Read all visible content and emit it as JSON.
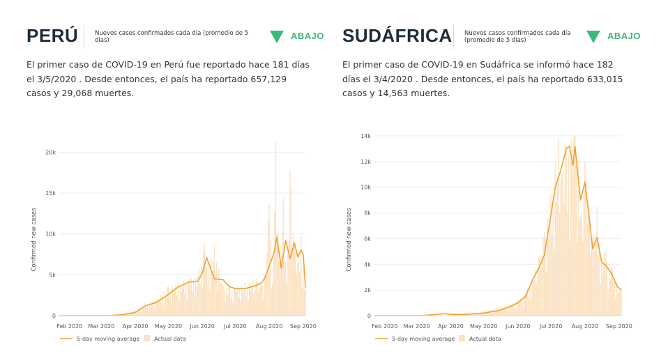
{
  "colors": {
    "avg_line": "#f0a22e",
    "actual_bars": "#fbe2c2",
    "trend": "#3cb878",
    "grid": "#ececec"
  },
  "trend_icon": "down-triangle-icon",
  "panels": [
    {
      "country": "PERÚ",
      "metric": "Nuevos casos confirmados cada día (promedio de 5 días)",
      "trend": "ABAJO",
      "description": "El primer caso de COVID-19 en Perú fue reportado hace 181 días el 3/5/2020 . Desde entonces, el país ha reportado 657,129 casos y 29,068 muertes."
    },
    {
      "country": "SUDÁFRICA",
      "metric": "Nuevos casos confirmados cada día (promedio de 5 días)",
      "trend": "ABAJO",
      "description": "El primer caso de COVID-19 en Sudáfrica se informó hace 182 días el 3/4/2020 . Desde entonces, el país ha reportado 633,015 casos y 14,563 muertes."
    }
  ],
  "chart_data": [
    {
      "type": "line",
      "ylabel": "Confirmed new cases",
      "ylim": [
        0,
        22000
      ],
      "yticks": [
        0,
        5000,
        10000,
        15000,
        20000
      ],
      "ytick_labels": [
        "0",
        "5k",
        "10k",
        "15k",
        "20k"
      ],
      "xlim": [
        "2020-01-22",
        "2020-09-03"
      ],
      "xticks": [
        "2020-02-01",
        "2020-03-01",
        "2020-04-01",
        "2020-05-01",
        "2020-06-01",
        "2020-07-01",
        "2020-08-01",
        "2020-09-01"
      ],
      "xtick_labels": [
        "Feb 2020",
        "Mar 2020",
        "Apr 2020",
        "May 2020",
        "Jun 2020",
        "Jul 2020",
        "Aug 2020",
        "Sep 2020"
      ],
      "grid": true,
      "legend": [
        "5-day moving average",
        "Actual data"
      ],
      "legend_position": "bottom-left",
      "series": [
        {
          "name": "5-day moving average",
          "x": [
            "2020-01-22",
            "2020-03-06",
            "2020-03-20",
            "2020-04-01",
            "2020-04-10",
            "2020-04-20",
            "2020-04-30",
            "2020-05-10",
            "2020-05-20",
            "2020-05-28",
            "2020-06-01",
            "2020-06-05",
            "2020-06-12",
            "2020-06-20",
            "2020-06-25",
            "2020-07-01",
            "2020-07-10",
            "2020-07-20",
            "2020-07-25",
            "2020-07-28",
            "2020-08-01",
            "2020-08-05",
            "2020-08-08",
            "2020-08-12",
            "2020-08-16",
            "2020-08-20",
            "2020-08-24",
            "2020-08-27",
            "2020-08-30",
            "2020-09-01",
            "2020-09-03"
          ],
          "values": [
            0,
            0,
            100,
            400,
            1200,
            1600,
            2500,
            3500,
            4100,
            4200,
            5200,
            7100,
            4500,
            4400,
            3600,
            3300,
            3300,
            3700,
            4000,
            4600,
            6100,
            7500,
            9600,
            5800,
            9200,
            7000,
            8900,
            7200,
            8000,
            7500,
            3400
          ]
        },
        {
          "name": "Actual data",
          "x": [
            "2020-03-06",
            "2020-03-20",
            "2020-04-01",
            "2020-04-10",
            "2020-04-20",
            "2020-04-30",
            "2020-05-10",
            "2020-05-20",
            "2020-05-28",
            "2020-06-03",
            "2020-06-05",
            "2020-06-12",
            "2020-06-20",
            "2020-06-25",
            "2020-07-01",
            "2020-07-10",
            "2020-07-20",
            "2020-07-25",
            "2020-07-28",
            "2020-08-01",
            "2020-08-04",
            "2020-08-07",
            "2020-08-10",
            "2020-08-14",
            "2020-08-17",
            "2020-08-20",
            "2020-08-24",
            "2020-08-27",
            "2020-08-30",
            "2020-09-01",
            "2020-09-03"
          ],
          "values": [
            0,
            200,
            600,
            1500,
            2000,
            3500,
            4000,
            4500,
            5000,
            8800,
            6000,
            8600,
            3700,
            3500,
            3500,
            4000,
            4500,
            3800,
            5000,
            13800,
            4000,
            21200,
            6500,
            14300,
            4000,
            17800,
            9000,
            6500,
            9800,
            5500,
            3500
          ]
        }
      ]
    },
    {
      "type": "line",
      "ylabel": "Confirmed new cases",
      "ylim": [
        0,
        14000
      ],
      "yticks": [
        0,
        2000,
        4000,
        6000,
        8000,
        10000,
        12000,
        14000
      ],
      "ytick_labels": [
        "0",
        "2k",
        "4k",
        "6k",
        "8k",
        "10k",
        "12k",
        "14k"
      ],
      "xlim": [
        "2020-01-22",
        "2020-09-03"
      ],
      "xticks": [
        "2020-02-01",
        "2020-03-01",
        "2020-04-01",
        "2020-05-01",
        "2020-06-01",
        "2020-07-01",
        "2020-08-01",
        "2020-09-01"
      ],
      "xtick_labels": [
        "Feb 2020",
        "Mar 2020",
        "Apr 2020",
        "May 2020",
        "Jun 2020",
        "Jul 2020",
        "Aug 2020",
        "Sep 2020"
      ],
      "grid": true,
      "legend": [
        "5-day moving average",
        "Actual data"
      ],
      "legend_position": "bottom-left",
      "series": [
        {
          "name": "5-day moving average",
          "x": [
            "2020-01-22",
            "2020-03-05",
            "2020-03-27",
            "2020-04-01",
            "2020-04-15",
            "2020-05-01",
            "2020-05-15",
            "2020-05-25",
            "2020-06-01",
            "2020-06-08",
            "2020-06-15",
            "2020-06-20",
            "2020-06-25",
            "2020-07-01",
            "2020-07-05",
            "2020-07-10",
            "2020-07-15",
            "2020-07-18",
            "2020-07-21",
            "2020-07-23",
            "2020-07-25",
            "2020-07-28",
            "2020-08-01",
            "2020-08-05",
            "2020-08-08",
            "2020-08-12",
            "2020-08-16",
            "2020-08-20",
            "2020-08-25",
            "2020-08-30",
            "2020-09-03"
          ],
          "values": [
            0,
            0,
            150,
            100,
            100,
            200,
            400,
            700,
            1000,
            1500,
            2900,
            3700,
            4700,
            7800,
            10000,
            11300,
            13000,
            13200,
            11700,
            13200,
            11400,
            9000,
            10400,
            7500,
            5200,
            6100,
            4200,
            3900,
            3300,
            2300,
            2000
          ]
        },
        {
          "name": "Actual data",
          "x": [
            "2020-04-01",
            "2020-04-15",
            "2020-05-01",
            "2020-05-15",
            "2020-05-25",
            "2020-06-01",
            "2020-06-08",
            "2020-06-15",
            "2020-06-20",
            "2020-06-25",
            "2020-07-01",
            "2020-07-05",
            "2020-07-08",
            "2020-07-11",
            "2020-07-14",
            "2020-07-17",
            "2020-07-20",
            "2020-07-23",
            "2020-07-26",
            "2020-07-29",
            "2020-08-01",
            "2020-08-05",
            "2020-08-08",
            "2020-08-12",
            "2020-08-16",
            "2020-08-20",
            "2020-08-25",
            "2020-08-30",
            "2020-09-03"
          ],
          "values": [
            100,
            200,
            300,
            700,
            900,
            1200,
            1800,
            3000,
            4500,
            6500,
            9500,
            12000,
            13800,
            11000,
            13500,
            12500,
            13800,
            14000,
            12000,
            8000,
            12000,
            8500,
            6000,
            8500,
            4500,
            5000,
            3800,
            2600,
            2000
          ]
        }
      ]
    }
  ]
}
